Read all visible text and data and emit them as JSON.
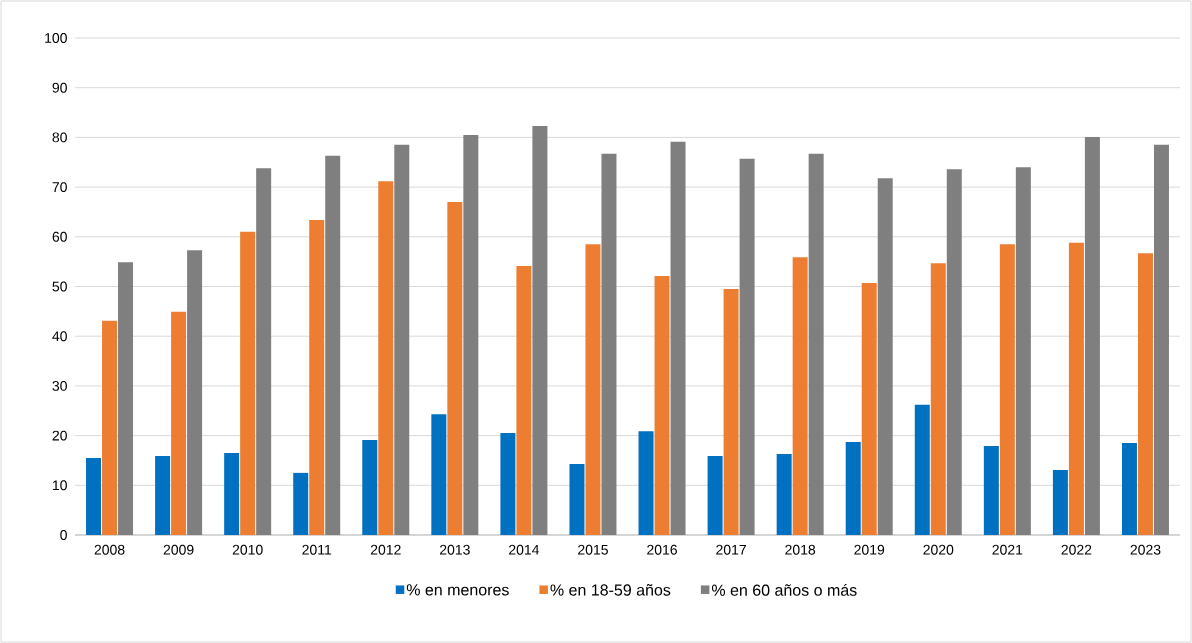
{
  "chart_data": {
    "type": "bar",
    "categories": [
      "2008",
      "2009",
      "2010",
      "2011",
      "2012",
      "2013",
      "2014",
      "2015",
      "2016",
      "2017",
      "2018",
      "2019",
      "2020",
      "2021",
      "2022",
      "2023"
    ],
    "series": [
      {
        "name": "% en menores",
        "color": "#0070c0",
        "values": [
          15.5,
          15.9,
          16.5,
          12.5,
          19.1,
          24.3,
          20.5,
          14.3,
          20.9,
          15.9,
          16.3,
          18.7,
          26.2,
          17.9,
          13.1,
          18.5
        ]
      },
      {
        "name": "% en 18-59 años",
        "color": "#ed7d31",
        "values": [
          43.1,
          44.9,
          61.0,
          63.4,
          71.2,
          67.0,
          54.1,
          58.5,
          52.1,
          49.5,
          55.9,
          50.7,
          54.7,
          58.5,
          58.8,
          56.7
        ]
      },
      {
        "name": "% en 60 años o más",
        "color": "#7f7f7f",
        "values": [
          54.9,
          57.3,
          73.8,
          76.3,
          78.5,
          80.5,
          82.3,
          76.7,
          79.1,
          75.7,
          76.7,
          71.8,
          73.6,
          74.0,
          80.1,
          78.5
        ]
      }
    ],
    "ylim": [
      0,
      100
    ],
    "yticks": [
      0,
      10,
      20,
      30,
      40,
      50,
      60,
      70,
      80,
      90,
      100
    ],
    "grid": "y",
    "legend": "bottom"
  }
}
